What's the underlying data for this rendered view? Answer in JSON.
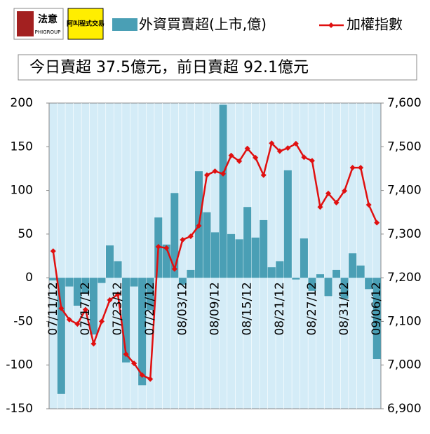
{
  "brand": [
    "法意",
    "PHIGROUP",
    "阿叫程式交易"
  ],
  "chart_data": {
    "type": "bar-line",
    "annotation": "今日賣超 37.5億元，前日賣超 92.1億元",
    "categories": [
      "07/11/12",
      null,
      null,
      null,
      "07/17/12",
      null,
      null,
      null,
      "07/23/12",
      null,
      null,
      null,
      "07/27/12",
      null,
      null,
      null,
      "08/03/12",
      null,
      null,
      null,
      "08/09/12",
      null,
      null,
      null,
      "08/15/12",
      null,
      null,
      null,
      "08/21/12",
      null,
      null,
      null,
      "08/27/12",
      null,
      null,
      null,
      "08/31/12",
      null,
      null,
      null,
      "09/06/12"
    ],
    "series": [
      {
        "name": "外資買賣超(上市,億)",
        "type": "bar",
        "color": "#4a9fb5",
        "values": [
          -3,
          -133,
          -10,
          -32,
          -18,
          -65,
          -6,
          37,
          19,
          -97,
          -10,
          -123,
          -37,
          69,
          38,
          97,
          -8,
          9,
          122,
          75,
          52,
          198,
          50,
          44,
          81,
          46,
          66,
          12,
          19,
          123,
          -2,
          45,
          -15,
          4,
          -21,
          9,
          -24,
          28,
          14,
          -13,
          -93
        ]
      },
      {
        "name": "加權指數",
        "type": "line",
        "axis": "y2",
        "color": "#e01010",
        "values": [
          7261,
          7130,
          7104,
          7094,
          7127,
          7049,
          7100,
          7149,
          7162,
          7025,
          7004,
          6977,
          6968,
          7271,
          7268,
          7220,
          7287,
          7295,
          7319,
          7435,
          7444,
          7438,
          7480,
          7467,
          7496,
          7475,
          7435,
          7508,
          7490,
          7497,
          7507,
          7476,
          7468,
          7362,
          7393,
          7372,
          7399,
          7452,
          7452,
          7367,
          7326
        ]
      }
    ],
    "ylim": [
      -150,
      200
    ],
    "yticks": [
      -150,
      -100,
      -50,
      0,
      50,
      100,
      150,
      200
    ],
    "y2lim": [
      6900,
      7600
    ],
    "y2ticks": [
      {
        "value": 6900,
        "label": "6,900"
      },
      {
        "value": 7000,
        "label": "7,000"
      },
      {
        "value": 7100,
        "label": "7,100"
      },
      {
        "value": 7200,
        "label": "7,200"
      },
      {
        "value": 7300,
        "label": "7,300"
      },
      {
        "value": 7400,
        "label": "7,400"
      },
      {
        "value": 7500,
        "label": "7,500"
      },
      {
        "value": 7600,
        "label": "7,600"
      }
    ],
    "plot_background": "#d4ecf7"
  }
}
